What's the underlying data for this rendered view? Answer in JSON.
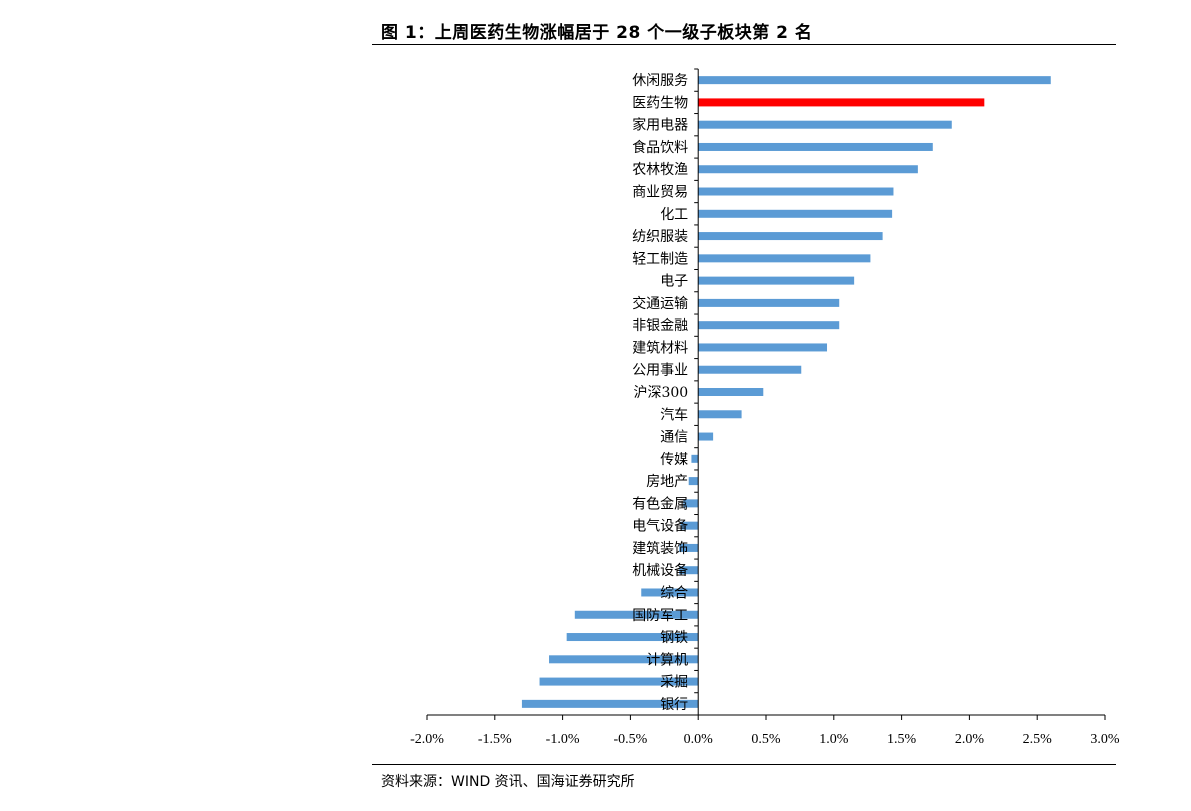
{
  "figure": {
    "title": "图 1：上周医药生物涨幅居于 28 个一级子板块第 2 名",
    "source": "资料来源：WIND 资讯、国海证券研究所"
  },
  "colors": {
    "bar": "#5b9bd5",
    "highlight": "#ff0000",
    "axis": "#000000"
  },
  "chart_data": {
    "type": "bar",
    "orientation": "horizontal",
    "title": "",
    "xlabel": "",
    "ylabel": "",
    "xlim": [
      -2.0,
      3.0
    ],
    "grid": false,
    "legend": "none",
    "highlight_category": "医药生物",
    "categories": [
      "休闲服务",
      "医药生物",
      "家用电器",
      "食品饮料",
      "农林牧渔",
      "商业贸易",
      "化工",
      "纺织服装",
      "轻工制造",
      "电子",
      "交通运输",
      "非银金融",
      "建筑材料",
      "公用事业",
      "沪深300",
      "汽车",
      "通信",
      "传媒",
      "房地产",
      "有色金属",
      "电气设备",
      "建筑装饰",
      "机械设备",
      "综合",
      "国防军工",
      "钢铁",
      "计算机",
      "采掘",
      "银行"
    ],
    "values": [
      2.6,
      2.11,
      1.87,
      1.73,
      1.62,
      1.44,
      1.43,
      1.36,
      1.27,
      1.15,
      1.04,
      1.04,
      0.95,
      0.76,
      0.48,
      0.32,
      0.11,
      -0.05,
      -0.07,
      -0.11,
      -0.13,
      -0.14,
      -0.14,
      -0.42,
      -0.91,
      -0.97,
      -1.1,
      -1.17,
      -1.3
    ],
    "xticks": [
      "-2.0%",
      "-1.5%",
      "-1.0%",
      "-0.5%",
      "0.0%",
      "0.5%",
      "1.0%",
      "1.5%",
      "2.0%",
      "2.5%",
      "3.0%"
    ]
  }
}
